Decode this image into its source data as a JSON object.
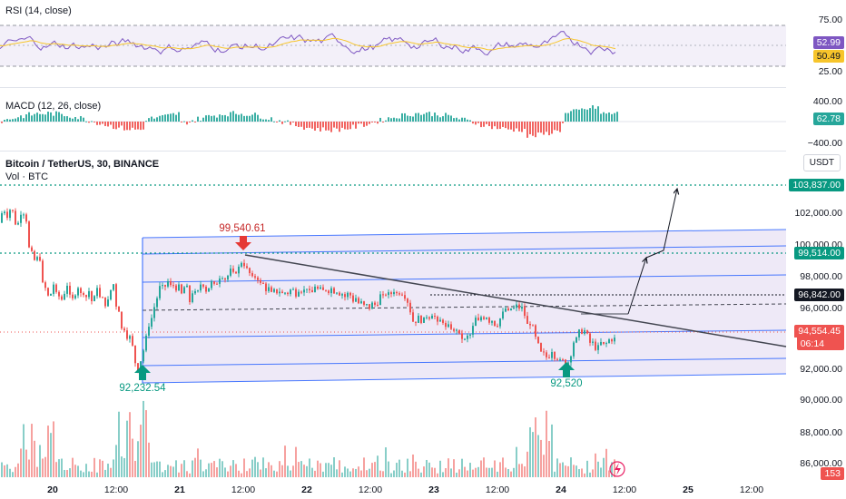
{
  "panels": {
    "rsi": {
      "title": "RSI (14, close)",
      "axis": [
        "75.00",
        "25.00"
      ],
      "rsi_value": "52.99",
      "ma_value": "50.49"
    },
    "macd": {
      "title": "MACD (12, 26, close)",
      "axis": [
        "400.00",
        "−400.00"
      ],
      "value": "62.78"
    },
    "price": {
      "title": "Bitcoin / TetherUS, 30, BINANCE",
      "subtitle": "Vol · BTC",
      "currency": "USDT",
      "axis": [
        "102,000.00",
        "100,000.00",
        "98,000.00",
        "96,000.00",
        "92,000.00",
        "90,000.00",
        "88,000.00",
        "86,000.00"
      ],
      "tags": {
        "target": "103,837.00",
        "resistance": "99,514.00",
        "level": "96,842.00",
        "last": "94,554.45",
        "countdown": "06:14",
        "volume": "153"
      }
    }
  },
  "annotations": {
    "high": "99,540.61",
    "low1": "92,232.54",
    "low2": "92,520"
  },
  "x_labels": [
    "20",
    "12:00",
    "21",
    "12:00",
    "22",
    "12:00",
    "23",
    "12:00",
    "24",
    "12:00",
    "25",
    "12:00"
  ],
  "colors": {
    "up": "#26a69a",
    "down": "#ef5350",
    "channel": "#2962ff",
    "rsi": "#7e57c2",
    "rsi_ma": "#f7c52b",
    "target": "#089981",
    "level_tag": "#131722",
    "annotation_red": "#c62828"
  },
  "chart_data": {
    "type": "candlestick",
    "symbol": "BTCUSDT",
    "timeframe": "30",
    "exchange": "BINANCE",
    "ylim": [
      85500,
      104600
    ],
    "levels": {
      "target": 103837,
      "resistance": 99514,
      "dotted": 96842,
      "last": 94554.45
    },
    "swing_points": {
      "high": 99540.61,
      "low1": 92232.54,
      "low2": 92520
    },
    "path": [
      [
        0,
        101800
      ],
      [
        3,
        102700
      ],
      [
        6,
        102500
      ],
      [
        9,
        102100
      ],
      [
        12,
        102900
      ],
      [
        15,
        102300
      ],
      [
        18,
        101500
      ],
      [
        21,
        101900
      ],
      [
        24,
        102700
      ],
      [
        27,
        102300
      ],
      [
        30,
        101800
      ],
      [
        33,
        99400
      ],
      [
        36,
        100100
      ],
      [
        39,
        99100
      ],
      [
        42,
        99800
      ],
      [
        45,
        99400
      ],
      [
        48,
        97200
      ],
      [
        51,
        97900
      ],
      [
        54,
        96800
      ],
      [
        57,
        97600
      ],
      [
        60,
        98100
      ],
      [
        63,
        96900
      ],
      [
        66,
        97300
      ],
      [
        69,
        96800
      ],
      [
        72,
        97700
      ],
      [
        75,
        98000
      ],
      [
        78,
        96700
      ],
      [
        81,
        97100
      ],
      [
        84,
        97500
      ],
      [
        87,
        97900
      ],
      [
        90,
        97000
      ],
      [
        93,
        97600
      ],
      [
        96,
        96900
      ],
      [
        99,
        97800
      ],
      [
        102,
        96400
      ],
      [
        105,
        97400
      ],
      [
        108,
        98000
      ],
      [
        111,
        96600
      ],
      [
        114,
        97200
      ],
      [
        117,
        96400
      ],
      [
        120,
        97100
      ],
      [
        123,
        97800
      ],
      [
        126,
        98000
      ],
      [
        129,
        95900
      ],
      [
        132,
        96500
      ],
      [
        135,
        94400
      ],
      [
        138,
        95500
      ],
      [
        141,
        94200
      ],
      [
        144,
        94800
      ],
      [
        147,
        93600
      ],
      [
        150,
        92700
      ],
      [
        153,
        92400
      ],
      [
        156,
        93500
      ],
      [
        159,
        93900
      ],
      [
        162,
        94900
      ],
      [
        165,
        95600
      ],
      [
        168,
        95900
      ],
      [
        171,
        96800
      ],
      [
        174,
        97200
      ],
      [
        177,
        98000
      ],
      [
        180,
        97600
      ],
      [
        183,
        97900
      ],
      [
        186,
        98200
      ],
      [
        189,
        97600
      ],
      [
        192,
        98000
      ],
      [
        195,
        97500
      ],
      [
        198,
        97900
      ],
      [
        201,
        97000
      ],
      [
        204,
        98100
      ],
      [
        207,
        97500
      ],
      [
        210,
        96500
      ],
      [
        213,
        97900
      ],
      [
        216,
        97100
      ],
      [
        219,
        97600
      ],
      [
        222,
        98100
      ],
      [
        225,
        97800
      ],
      [
        228,
        97400
      ],
      [
        231,
        97900
      ],
      [
        234,
        98100
      ],
      [
        237,
        97700
      ],
      [
        240,
        98200
      ],
      [
        243,
        98500
      ],
      [
        246,
        98400
      ],
      [
        249,
        98200
      ],
      [
        252,
        98600
      ],
      [
        255,
        98900
      ],
      [
        258,
        98400
      ],
      [
        261,
        98900
      ],
      [
        264,
        99000
      ],
      [
        267,
        99500
      ],
      [
        270,
        99000
      ],
      [
        273,
        98800
      ],
      [
        276,
        98500
      ],
      [
        279,
        98200
      ],
      [
        282,
        98500
      ],
      [
        285,
        98200
      ],
      [
        288,
        97800
      ],
      [
        291,
        98000
      ],
      [
        294,
        97400
      ],
      [
        297,
        97800
      ],
      [
        300,
        97100
      ],
      [
        303,
        97700
      ],
      [
        306,
        97300
      ],
      [
        309,
        97600
      ],
      [
        312,
        97200
      ],
      [
        315,
        97500
      ],
      [
        318,
        97300
      ],
      [
        321,
        97700
      ],
      [
        324,
        97500
      ],
      [
        327,
        97200
      ],
      [
        330,
        97800
      ],
      [
        333,
        97400
      ],
      [
        336,
        97600
      ],
      [
        339,
        97800
      ],
      [
        342,
        97200
      ],
      [
        345,
        97500
      ],
      [
        348,
        98000
      ],
      [
        351,
        97400
      ],
      [
        354,
        97700
      ],
      [
        357,
        97400
      ],
      [
        360,
        97700
      ],
      [
        363,
        97400
      ],
      [
        366,
        97800
      ],
      [
        369,
        97300
      ],
      [
        372,
        97600
      ],
      [
        375,
        97200
      ],
      [
        378,
        97400
      ],
      [
        381,
        97000
      ],
      [
        384,
        97500
      ],
      [
        387,
        97100
      ],
      [
        390,
        96800
      ],
      [
        393,
        97200
      ],
      [
        396,
        96500
      ],
      [
        399,
        96900
      ],
      [
        402,
        96400
      ],
      [
        405,
        96700
      ],
      [
        408,
        96300
      ],
      [
        411,
        96900
      ],
      [
        414,
        96500
      ],
      [
        417,
        96900
      ],
      [
        420,
        97400
      ],
      [
        423,
        97000
      ],
      [
        426,
        97500
      ],
      [
        429,
        97200
      ],
      [
        432,
        97400
      ],
      [
        435,
        97600
      ],
      [
        438,
        97200
      ],
      [
        441,
        97500
      ],
      [
        444,
        97300
      ],
      [
        447,
        97100
      ],
      [
        450,
        96700
      ],
      [
        453,
        96000
      ],
      [
        456,
        95400
      ],
      [
        459,
        95700
      ],
      [
        462,
        95900
      ],
      [
        465,
        95500
      ],
      [
        468,
        95800
      ],
      [
        471,
        96000
      ],
      [
        474,
        95800
      ],
      [
        477,
        96200
      ],
      [
        480,
        95700
      ],
      [
        483,
        95300
      ],
      [
        486,
        95800
      ],
      [
        489,
        95500
      ],
      [
        492,
        95000
      ],
      [
        495,
        95400
      ],
      [
        498,
        95100
      ],
      [
        501,
        94800
      ],
      [
        504,
        95300
      ],
      [
        507,
        94400
      ],
      [
        510,
        94600
      ],
      [
        513,
        94300
      ],
      [
        516,
        94800
      ],
      [
        519,
        94700
      ],
      [
        522,
        95500
      ],
      [
        525,
        95900
      ],
      [
        528,
        95400
      ],
      [
        531,
        96100
      ],
      [
        534,
        95700
      ],
      [
        537,
        96000
      ],
      [
        540,
        95400
      ],
      [
        543,
        95800
      ],
      [
        546,
        95200
      ],
      [
        549,
        95500
      ],
      [
        552,
        95900
      ],
      [
        555,
        96200
      ],
      [
        558,
        96500
      ],
      [
        561,
        96000
      ],
      [
        564,
        96600
      ],
      [
        567,
        96300
      ],
      [
        570,
        96700
      ],
      [
        573,
        96300
      ],
      [
        576,
        96500
      ],
      [
        579,
        95700
      ],
      [
        582,
        95200
      ],
      [
        585,
        95600
      ],
      [
        588,
        95000
      ],
      [
        591,
        94300
      ],
      [
        594,
        94000
      ],
      [
        597,
        93400
      ],
      [
        600,
        93600
      ],
      [
        603,
        93200
      ],
      [
        606,
        93500
      ],
      [
        609,
        93900
      ],
      [
        612,
        93100
      ],
      [
        615,
        93400
      ],
      [
        618,
        92900
      ],
      [
        621,
        93200
      ],
      [
        624,
        92700
      ],
      [
        627,
        93200
      ],
      [
        630,
        93700
      ],
      [
        633,
        94600
      ],
      [
        636,
        94400
      ],
      [
        639,
        95200
      ],
      [
        642,
        94800
      ],
      [
        645,
        95100
      ],
      [
        648,
        94500
      ],
      [
        651,
        94100
      ],
      [
        654,
        94300
      ],
      [
        657,
        93700
      ],
      [
        660,
        94100
      ],
      [
        663,
        94300
      ],
      [
        666,
        94000
      ],
      [
        669,
        94300
      ],
      [
        672,
        94500
      ],
      [
        675,
        94400
      ],
      [
        678,
        94550
      ]
    ]
  }
}
